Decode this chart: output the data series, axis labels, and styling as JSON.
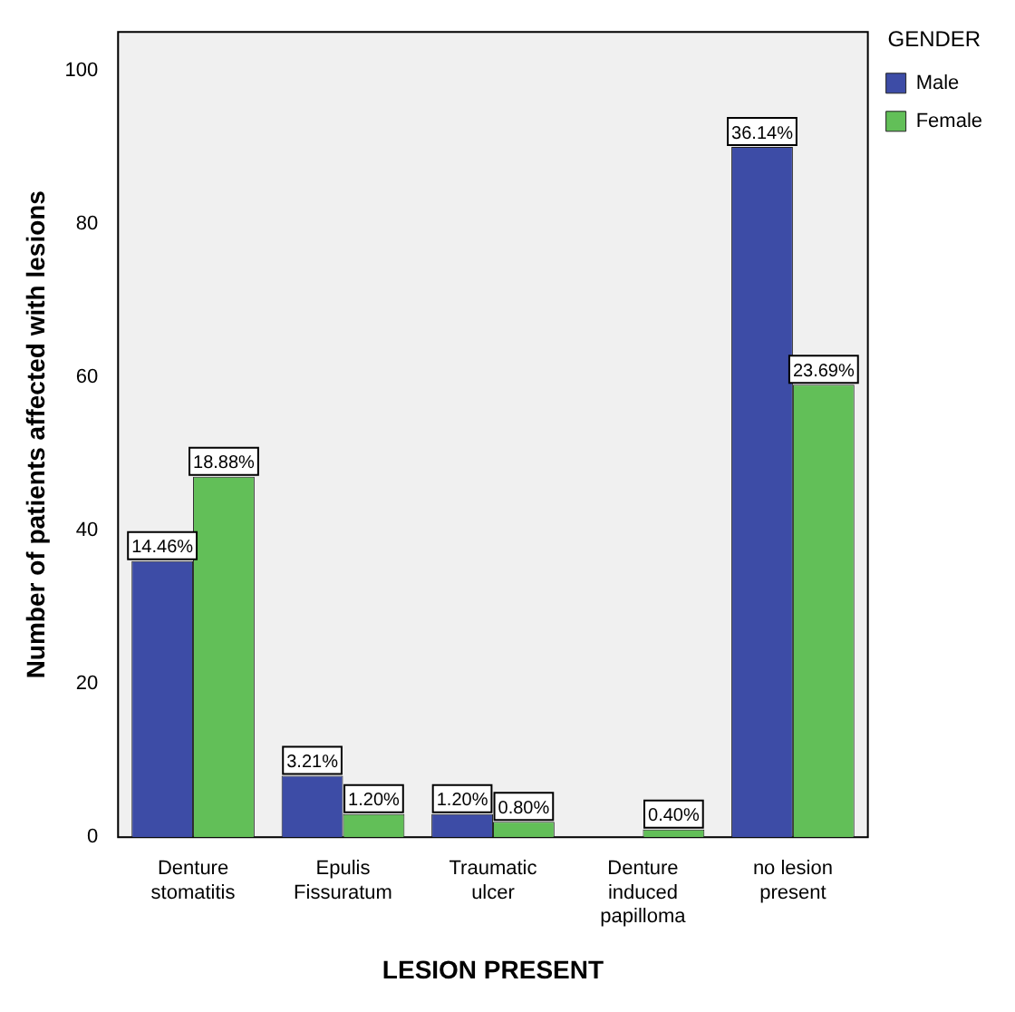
{
  "chart_data": {
    "type": "bar",
    "xlabel": "LESION PRESENT",
    "ylabel": "Number of patients affected with lesions",
    "legend_title": "GENDER",
    "legend": "top right",
    "categories": [
      "Denture stomatitis",
      "Epulis Fissuratum",
      "Traumatic ulcer",
      "Denture induced papilloma",
      "no lesion present"
    ],
    "series": [
      {
        "name": "Male",
        "color": "#3d4ca6",
        "values": [
          36,
          8,
          3,
          0,
          90
        ]
      },
      {
        "name": "Female",
        "color": "#62bf58",
        "values": [
          47,
          3,
          2,
          1,
          59
        ]
      }
    ],
    "annotations": [
      {
        "text": "14.46%",
        "x": "Denture stomatitis",
        "y": 36
      },
      {
        "text": "18.88%",
        "x": "Denture stomatitis",
        "y": 47
      },
      {
        "text": "3.21%",
        "x": "Epulis Fissuratum",
        "y": 8
      },
      {
        "text": "1.20%",
        "x": "Epulis Fissuratum",
        "y": 3
      },
      {
        "text": "1.20%",
        "x": "Traumatic ulcer",
        "y": 3
      },
      {
        "text": "0.80%",
        "x": "Traumatic ulcer",
        "y": 2
      },
      {
        "text": "0.40%",
        "x": "Denture induced papilloma",
        "y": 1
      },
      {
        "text": "36.14%",
        "x": "no lesion present",
        "y": 90
      },
      {
        "text": "23.69%",
        "x": "no lesion present",
        "y": 59
      }
    ],
    "ylim": [
      0,
      105
    ],
    "yticks": [
      0,
      20,
      40,
      60,
      80,
      100
    ],
    "grid": false
  }
}
